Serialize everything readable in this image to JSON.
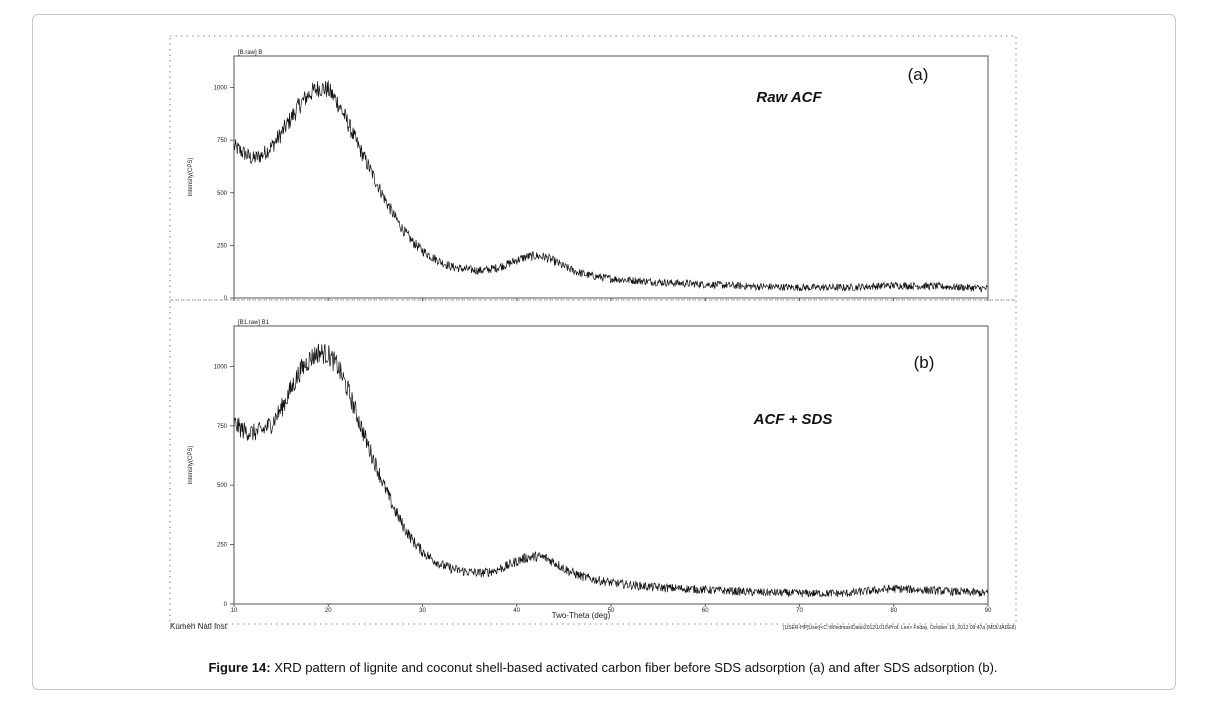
{
  "caption": {
    "label": "Figure 14:",
    "text": " XRD pattern of lignite and coconut shell-based activated carbon fiber before SDS adsorption (a) and after SDS adsorption (b)."
  },
  "figure": {
    "footer_left": "Kumeh Natl Inst",
    "footer_right": "[USER-HP]User]<C:\\Windmax\\Data\\2012\\1010\\Prof. Lee> Friday, October 19, 2012 09:47a (MDI/JADE8)"
  },
  "colors": {
    "line": "#111111",
    "frame": "#555555",
    "text": "#222222"
  },
  "chart_data": [
    {
      "type": "line",
      "panel_label": "(a)",
      "sample_label": "Raw ACF",
      "file_label": "[B.raw] B",
      "ylabel": "Intensity(CPS)",
      "xlabel": "",
      "xlim": [
        10,
        90
      ],
      "ylim": [
        0,
        1150
      ],
      "yticks": [
        0,
        250,
        500,
        750,
        1000
      ],
      "xticks": [
        10,
        20,
        30,
        40,
        50,
        60,
        70,
        80,
        90
      ],
      "show_xtick_labels": false,
      "series": [
        {
          "x": [
            10,
            11,
            12,
            13,
            14,
            15,
            16,
            17,
            18,
            19,
            20,
            21,
            22,
            23,
            24,
            25,
            26,
            27,
            28,
            29,
            30,
            31,
            32,
            33,
            34,
            35,
            36,
            37,
            38,
            39,
            40,
            41,
            42,
            43,
            44,
            45,
            46,
            47,
            48,
            50,
            52,
            55,
            60,
            65,
            70,
            75,
            80,
            85,
            90
          ],
          "values": [
            720,
            690,
            660,
            680,
            720,
            780,
            850,
            920,
            970,
            1000,
            990,
            930,
            840,
            740,
            650,
            560,
            470,
            390,
            320,
            265,
            225,
            195,
            170,
            150,
            140,
            135,
            130,
            135,
            145,
            160,
            180,
            195,
            200,
            195,
            175,
            150,
            130,
            115,
            105,
            92,
            85,
            75,
            65,
            55,
            50,
            50,
            60,
            55,
            45
          ],
          "noise": 45
        }
      ]
    },
    {
      "type": "line",
      "panel_label": "(b)",
      "sample_label": "ACF + SDS",
      "file_label": "[B1.raw] B1",
      "ylabel": "Intensity(CPS)",
      "xlabel": "Two-Theta (deg)",
      "xlim": [
        10,
        90
      ],
      "ylim": [
        0,
        1170
      ],
      "yticks": [
        0,
        250,
        500,
        750,
        1000
      ],
      "xticks": [
        10,
        20,
        30,
        40,
        50,
        60,
        70,
        80,
        90
      ],
      "show_xtick_labels": true,
      "series": [
        {
          "x": [
            10,
            11,
            12,
            13,
            14,
            15,
            16,
            17,
            18,
            19,
            20,
            21,
            22,
            23,
            24,
            25,
            26,
            27,
            28,
            29,
            30,
            31,
            32,
            33,
            34,
            35,
            36,
            37,
            38,
            39,
            40,
            41,
            42,
            43,
            44,
            45,
            46,
            47,
            48,
            50,
            52,
            55,
            60,
            65,
            70,
            75,
            80,
            85,
            90
          ],
          "values": [
            760,
            730,
            720,
            730,
            760,
            820,
            900,
            980,
            1030,
            1060,
            1050,
            1000,
            910,
            800,
            690,
            590,
            490,
            400,
            325,
            265,
            220,
            190,
            165,
            150,
            140,
            135,
            130,
            135,
            145,
            160,
            180,
            195,
            200,
            195,
            175,
            150,
            130,
            115,
            105,
            90,
            80,
            70,
            60,
            50,
            45,
            45,
            65,
            55,
            45
          ],
          "noise": 45
        }
      ]
    }
  ]
}
